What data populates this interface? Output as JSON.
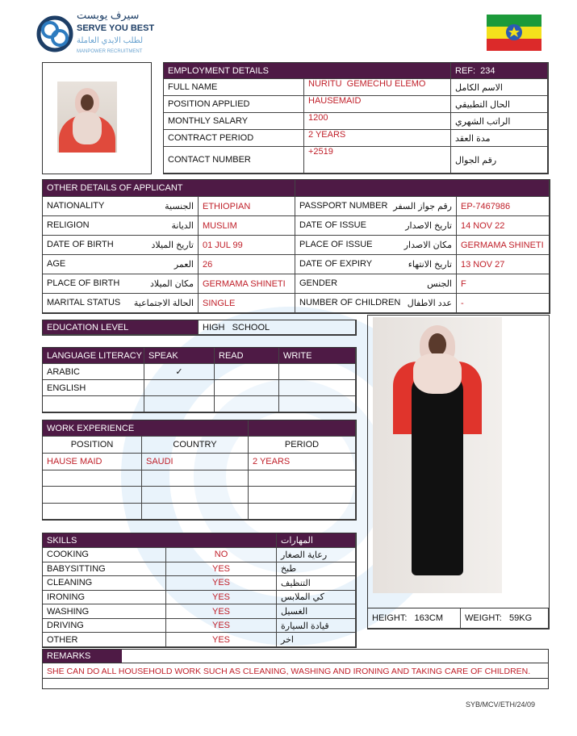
{
  "logo": {
    "arabic": "سيرف يوبست",
    "name": "SERVE YOU BEST",
    "arabic_sub": "لطلب الايدي العاملة",
    "sub": "MANPOWER RECRUITMENT"
  },
  "colors": {
    "header": "#4e1a45",
    "value": "#c0202a"
  },
  "employment": {
    "title": "EMPLOYMENT DETAILS",
    "ref": "REF:  234",
    "rows": [
      {
        "label": "FULL NAME",
        "value": "NURITU  GEMECHU ELEMO",
        "ar": "الاسم الكامل"
      },
      {
        "label": "POSITION APPLIED",
        "value": "HAUSEMAID",
        "ar": "الحال التطبيقي"
      },
      {
        "label": "MONTHLY SALARY",
        "value": "1200",
        "ar": "الراتب الشهري"
      },
      {
        "label": "CONTRACT PERIOD",
        "value": "2 YEARS",
        "ar": "مدة العقد"
      },
      {
        "label": "CONTACT NUMBER",
        "value": "+2519",
        "ar": "رقم الجوال"
      }
    ]
  },
  "other": {
    "title": "OTHER DETAILS OF APPLICANT",
    "rows": [
      {
        "l1": "NATIONALITY",
        "a1": "الجنسية",
        "v1": "ETHIOPIAN",
        "l2": "PASSPORT NUMBER",
        "a2": "رقم جواز السفر",
        "v2": "EP-7467986"
      },
      {
        "l1": "RELIGION",
        "a1": "الديانة",
        "v1": "MUSLIM",
        "l2": "DATE OF ISSUE",
        "a2": "تاريخ الاصدار",
        "v2": "14 NOV 22"
      },
      {
        "l1": "DATE OF BIRTH",
        "a1": "تاريخ الميلاد",
        "v1": "01 JUL 99",
        "l2": "PLACE OF ISSUE",
        "a2": "مكان الاصدار",
        "v2": "GERMAMA SHINETI"
      },
      {
        "l1": "AGE",
        "a1": "العمر",
        "v1": "26",
        "l2": "DATE OF EXPIRY",
        "a2": "تاريخ الانتهاء",
        "v2": "13 NOV 27"
      },
      {
        "l1": "PLACE OF BIRTH",
        "a1": "مكان الميلاد",
        "v1": "GERMAMA SHINETI",
        "l2": "GENDER",
        "a2": "الجنس",
        "v2": "F"
      },
      {
        "l1": "MARITAL STATUS",
        "a1": "الحالة الاجتماعية",
        "v1": "SINGLE",
        "l2": "NUMBER OF CHILDREN",
        "a2": "عدد الاطفال",
        "v2": "-"
      }
    ]
  },
  "education": {
    "label": "EDUCATION LEVEL",
    "value": "HIGH   SCHOOL"
  },
  "language": {
    "headers": [
      "LANGUAGE LITERACY",
      "SPEAK",
      "READ",
      "WRITE"
    ],
    "rows": [
      [
        "ARABIC",
        "✓",
        "",
        ""
      ],
      [
        "ENGLISH",
        "",
        "",
        ""
      ],
      [
        "",
        "",
        "",
        ""
      ]
    ]
  },
  "work": {
    "title": "WORK EXPERIENCE",
    "headers": [
      "POSITION",
      "COUNTRY",
      "PERIOD"
    ],
    "rows": [
      [
        "HAUSE MAID",
        "SAUDI",
        "2 YEARS"
      ],
      [
        "",
        "",
        ""
      ],
      [
        "",
        "",
        ""
      ],
      [
        "",
        "",
        ""
      ]
    ]
  },
  "skills": {
    "title": "SKILLS",
    "title_ar": "المهارات",
    "rows": [
      {
        "skill": "COOKING",
        "value": "NO",
        "ar": "رعاية الصغار"
      },
      {
        "skill": "BABYSITTING",
        "value": "YES",
        "ar": "طبخ"
      },
      {
        "skill": "CLEANING",
        "value": "YES",
        "ar": "التنظيف"
      },
      {
        "skill": "IRONING",
        "value": "YES",
        "ar": "كي الملابس"
      },
      {
        "skill": "WASHING",
        "value": "YES",
        "ar": "الغسيل"
      },
      {
        "skill": "DRIVING",
        "value": "YES",
        "ar": "قيادة السيارة"
      },
      {
        "skill": "OTHER",
        "value": "YES",
        "ar": "اخر"
      }
    ]
  },
  "measurements": {
    "height": "HEIGHT:   163CM",
    "weight": "WEIGHT:   59KG"
  },
  "remarks": {
    "title": "REMARKS",
    "text": "SHE CAN DO ALL HOUSEHOLD WORK SUCH AS CLEANING, WASHING AND IRONING AND TAKING CARE OF CHILDREN."
  },
  "footer": {
    "code": "SYB/MCV/ETH/24/09"
  }
}
